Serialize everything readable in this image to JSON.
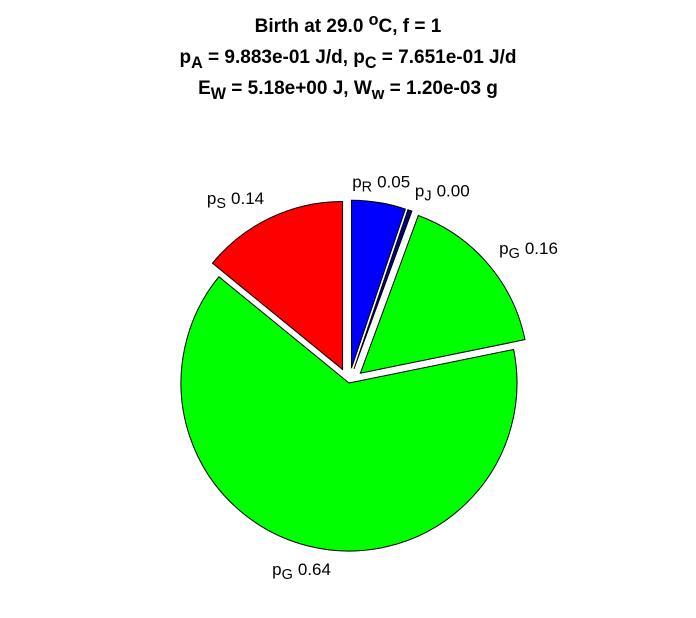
{
  "chart_data": {
    "type": "pie",
    "title": [
      [
        {
          "text": "Birth at 29.0 "
        },
        {
          "sup": "o"
        },
        {
          "text": "C, f = 1"
        }
      ],
      [
        {
          "text": "p"
        },
        {
          "sub": "A"
        },
        {
          "text": " = 9.883e-01 J/d, p"
        },
        {
          "sub": "C"
        },
        {
          "text": " = 7.651e-01 J/d"
        }
      ],
      [
        {
          "text": "E"
        },
        {
          "sub": "W"
        },
        {
          "text": " = 5.18e+00 J, W"
        },
        {
          "sub": "w"
        },
        {
          "text": " = 1.20e-03 g"
        }
      ]
    ],
    "categories": [
      [
        {
          "text": "p"
        },
        {
          "sub": "R"
        }
      ],
      [
        {
          "text": "p"
        },
        {
          "sub": "J"
        }
      ],
      [
        {
          "text": "p"
        },
        {
          "sub": "G"
        }
      ],
      [
        {
          "text": "p"
        },
        {
          "sub": "G"
        }
      ],
      [
        {
          "text": "p"
        },
        {
          "sub": "S"
        }
      ]
    ],
    "values": [
      0.052,
      0.004,
      0.162,
      0.641,
      0.141
    ],
    "value_labels": [
      "0.05",
      "0.00",
      "0.16",
      "0.64",
      "0.14"
    ],
    "colors": [
      "#0000ff",
      "#000080",
      "#00ff00",
      "#00ff00",
      "#ff0000"
    ],
    "explode": [
      true,
      true,
      true,
      false,
      true
    ]
  }
}
